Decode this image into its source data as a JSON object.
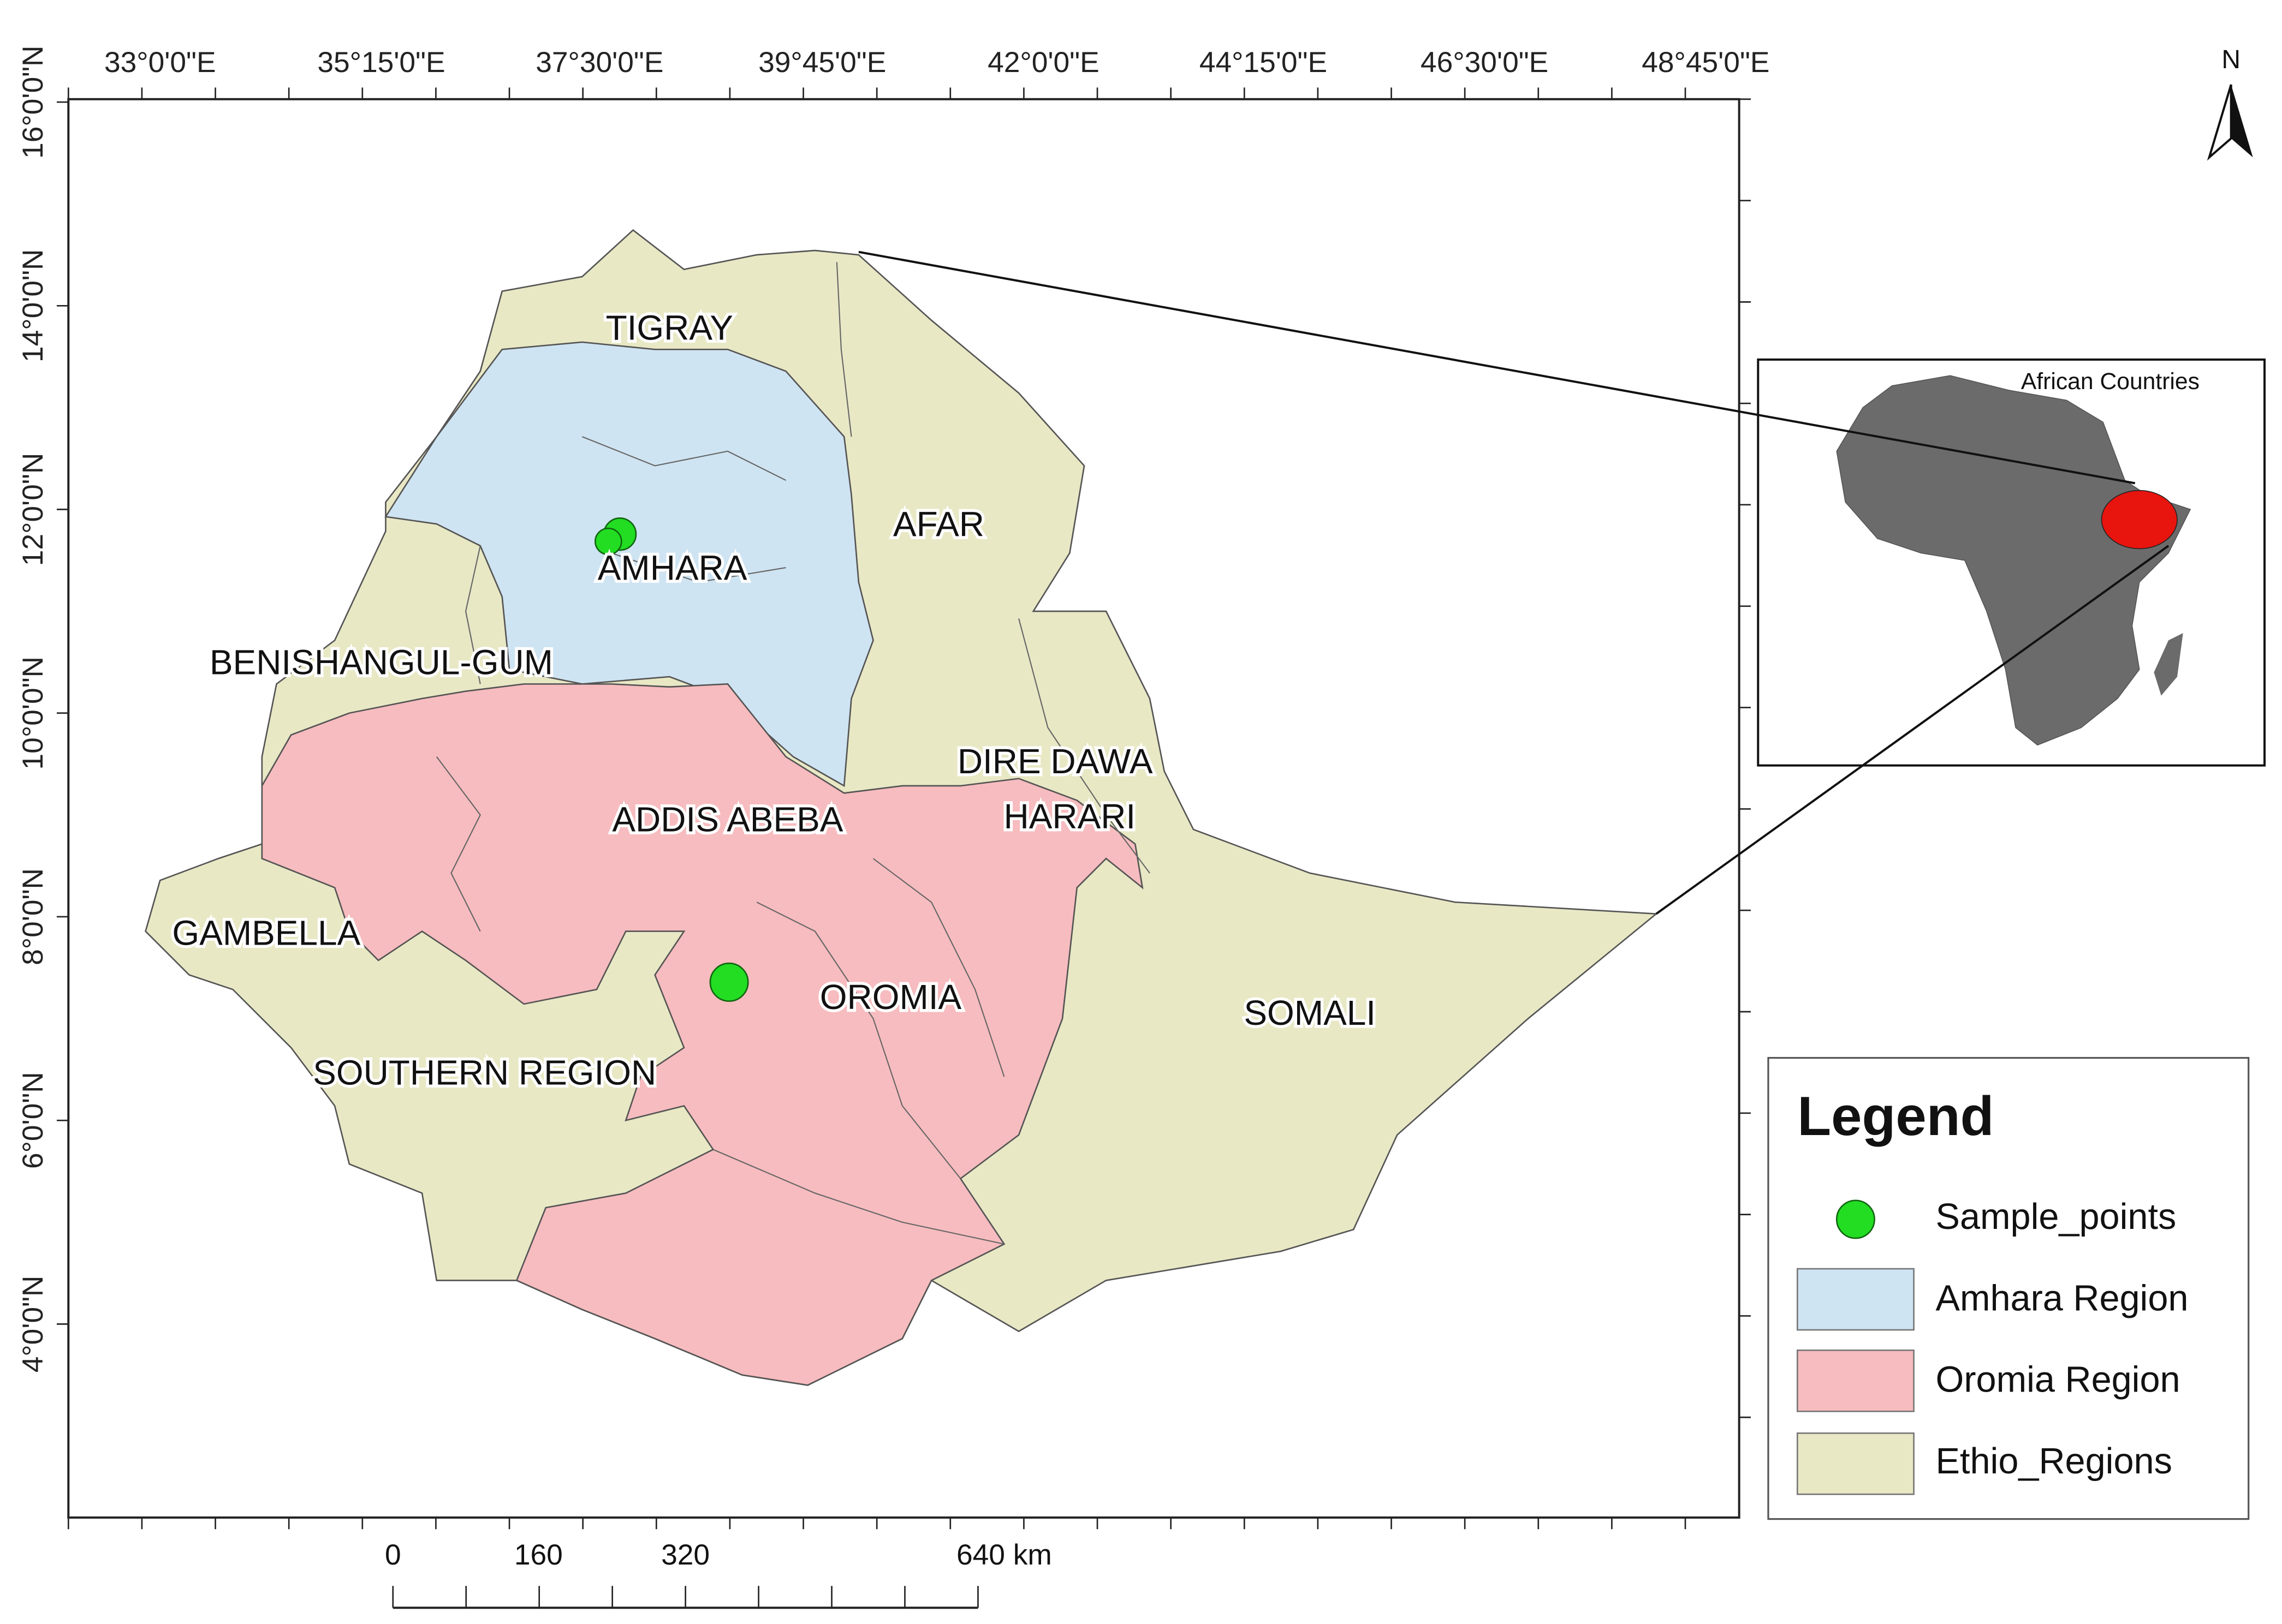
{
  "map": {
    "top_labels": [
      "33°0'0\"E",
      "35°15'0\"E",
      "37°30'0\"E",
      "39°45'0\"E",
      "42°0'0\"E",
      "44°15'0\"E",
      "46°30'0\"E",
      "48°45'0\"E"
    ],
    "left_labels": [
      "16°0'0\"N",
      "14°0'0\"N",
      "12°0'0\"N",
      "10°0'0\"N",
      "8°0'0\"N",
      "6°0'0\"N",
      "4°0'0\"N"
    ],
    "regions": [
      "TIGRAY",
      "AFAR",
      "AMHARA",
      "BENISHANGUL-GUM",
      "DIRE DAWA",
      "ADDIS ABEBA",
      "HARARI",
      "GAMBELLA",
      "OROMIA",
      "SOMALI",
      "SOUTHERN REGION"
    ],
    "north": "N",
    "inset": {
      "title": "African Countries"
    },
    "legend": {
      "title": "Legend",
      "items": [
        "Sample_points",
        "Amhara Region",
        "Oromia Region",
        "Ethio_Regions"
      ]
    },
    "scale_bar": [
      "0",
      "160",
      "320",
      "640 km"
    ]
  }
}
